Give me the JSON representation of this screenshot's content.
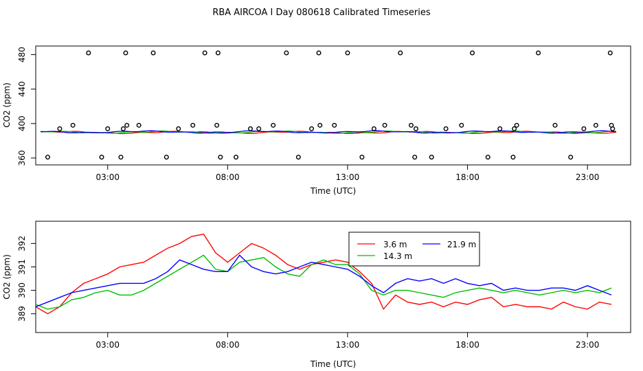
{
  "figure": {
    "title": "RBA AIRCOA I  Day 080618  Calibrated Timeseries"
  },
  "chart_data": [
    {
      "type": "scatter",
      "xlabel": "Time (UTC)",
      "ylabel": "CO2 (ppm)",
      "xlim": [
        0,
        24.8
      ],
      "ylim": [
        352,
        490
      ],
      "x_tick_values": [
        3,
        8,
        13,
        18,
        23
      ],
      "x_tick_labels": [
        "03:00",
        "08:00",
        "13:00",
        "18:00",
        "23:00"
      ],
      "y_tick_values": [
        360,
        400,
        440,
        480
      ],
      "y_tick_labels": [
        "360",
        "400",
        "440",
        "480"
      ],
      "grid": false,
      "legend": "none",
      "points": {
        "name": "",
        "x": [
          0.5,
          1.0,
          1.55,
          2.2,
          2.75,
          3.0,
          3.55,
          3.65,
          3.75,
          3.8,
          4.3,
          4.9,
          5.45,
          5.95,
          6.55,
          7.05,
          7.55,
          7.6,
          7.7,
          8.35,
          8.95,
          9.3,
          9.9,
          10.45,
          10.95,
          11.5,
          11.8,
          11.85,
          12.45,
          13.0,
          13.6,
          14.1,
          14.55,
          15.2,
          15.65,
          15.8,
          15.85,
          16.5,
          17.1,
          17.75,
          18.2,
          18.85,
          19.35,
          19.9,
          19.95,
          20.05,
          20.95,
          21.65,
          22.3,
          22.85,
          23.35,
          23.95,
          24.0,
          24.05
        ],
        "y": [
          361,
          394,
          398,
          482,
          361,
          394,
          361,
          394,
          482,
          398,
          398,
          482,
          361,
          394,
          398,
          482,
          398,
          482,
          361,
          361,
          394,
          394,
          398,
          482,
          361,
          394,
          482,
          398,
          398,
          482,
          361,
          394,
          398,
          482,
          398,
          361,
          394,
          361,
          394,
          398,
          482,
          361,
          394,
          361,
          394,
          398,
          482,
          398,
          361,
          394,
          398,
          482,
          398,
          394
        ]
      },
      "series": [
        {
          "name": "",
          "color": "#ff0000",
          "baseline": 389.7
        },
        {
          "name": "",
          "color": "#00bb00",
          "baseline": 390.0
        },
        {
          "name": "",
          "color": "#0000ff",
          "baseline": 390.3
        }
      ]
    },
    {
      "type": "line",
      "xlabel": "Time (UTC)",
      "ylabel": "CO2 (ppm)",
      "xlim": [
        0,
        24.8
      ],
      "ylim": [
        388.2,
        392.95
      ],
      "x_tick_values": [
        3,
        8,
        13,
        18,
        23
      ],
      "x_tick_labels": [
        "03:00",
        "08:00",
        "13:00",
        "18:00",
        "23:00"
      ],
      "y_tick_values": [
        389,
        390,
        391,
        392
      ],
      "y_tick_labels": [
        "389",
        "390",
        "391",
        "392"
      ],
      "grid": false,
      "legend": "top-center",
      "series": [
        {
          "name": "3.6 m",
          "color": "#ff0000",
          "x": [
            0.0,
            0.5,
            1.0,
            1.5,
            2.0,
            2.5,
            3.0,
            3.5,
            4.0,
            4.5,
            5.0,
            5.5,
            6.0,
            6.5,
            7.0,
            7.5,
            8.0,
            8.5,
            9.0,
            9.5,
            10.0,
            10.5,
            11.0,
            11.5,
            12.0,
            12.5,
            13.0,
            13.5,
            14.0,
            14.5,
            15.0,
            15.5,
            16.0,
            16.5,
            17.0,
            17.5,
            18.0,
            18.5,
            19.0,
            19.5,
            20.0,
            20.5,
            21.0,
            21.5,
            22.0,
            22.5,
            23.0,
            23.5,
            24.0
          ],
          "y": [
            389.3,
            389.0,
            389.3,
            389.9,
            390.3,
            390.5,
            390.7,
            391.0,
            391.1,
            391.2,
            391.5,
            391.8,
            392.0,
            392.3,
            392.4,
            391.6,
            391.2,
            391.6,
            392.0,
            391.8,
            391.5,
            391.1,
            390.9,
            391.1,
            391.2,
            391.3,
            391.2,
            390.8,
            390.3,
            389.2,
            389.8,
            389.5,
            389.4,
            389.5,
            389.3,
            389.5,
            389.4,
            389.6,
            389.7,
            389.3,
            389.4,
            389.3,
            389.3,
            389.2,
            389.5,
            389.3,
            389.2,
            389.5,
            389.4
          ]
        },
        {
          "name": "14.3 m",
          "color": "#00bb00",
          "x": [
            0.0,
            0.5,
            1.0,
            1.5,
            2.0,
            2.5,
            3.0,
            3.5,
            4.0,
            4.5,
            5.0,
            5.5,
            6.0,
            6.5,
            7.0,
            7.5,
            8.0,
            8.5,
            9.0,
            9.5,
            10.0,
            10.5,
            11.0,
            11.5,
            12.0,
            12.5,
            13.0,
            13.5,
            14.0,
            14.5,
            15.0,
            15.5,
            16.0,
            16.5,
            17.0,
            17.5,
            18.0,
            18.5,
            19.0,
            19.5,
            20.0,
            20.5,
            21.0,
            21.5,
            22.0,
            22.5,
            23.0,
            23.5,
            24.0
          ],
          "y": [
            389.4,
            389.2,
            389.3,
            389.6,
            389.7,
            389.9,
            390.0,
            389.8,
            389.8,
            390.0,
            390.3,
            390.6,
            390.9,
            391.2,
            391.5,
            390.9,
            390.8,
            391.2,
            391.3,
            391.4,
            391.0,
            390.7,
            390.6,
            391.1,
            391.3,
            391.1,
            391.1,
            390.7,
            390.0,
            389.8,
            390.0,
            390.0,
            389.9,
            389.8,
            389.7,
            389.9,
            390.0,
            390.1,
            390.0,
            389.9,
            390.0,
            389.9,
            389.8,
            389.9,
            390.0,
            389.9,
            390.0,
            389.9,
            390.1
          ]
        },
        {
          "name": "21.9 m",
          "color": "#0000ff",
          "x": [
            0.0,
            0.5,
            1.0,
            1.5,
            2.0,
            2.5,
            3.0,
            3.5,
            4.0,
            4.5,
            5.0,
            5.5,
            6.0,
            6.5,
            7.0,
            7.5,
            8.0,
            8.5,
            9.0,
            9.5,
            10.0,
            10.5,
            11.0,
            11.5,
            12.0,
            12.5,
            13.0,
            13.5,
            14.0,
            14.5,
            15.0,
            15.5,
            16.0,
            16.5,
            17.0,
            17.5,
            18.0,
            18.5,
            19.0,
            19.5,
            20.0,
            20.5,
            21.0,
            21.5,
            22.0,
            22.5,
            23.0,
            23.5,
            24.0
          ],
          "y": [
            389.3,
            389.5,
            389.7,
            389.9,
            390.0,
            390.1,
            390.2,
            390.3,
            390.3,
            390.3,
            390.5,
            390.8,
            391.3,
            391.1,
            390.9,
            390.8,
            390.8,
            391.5,
            391.0,
            390.8,
            390.7,
            390.8,
            391.0,
            391.2,
            391.1,
            391.0,
            390.9,
            390.6,
            390.2,
            389.9,
            390.3,
            390.5,
            390.4,
            390.5,
            390.3,
            390.5,
            390.3,
            390.2,
            390.3,
            390.0,
            390.1,
            390.0,
            390.0,
            390.1,
            390.1,
            390.0,
            390.2,
            390.0,
            389.8
          ]
        }
      ]
    }
  ]
}
